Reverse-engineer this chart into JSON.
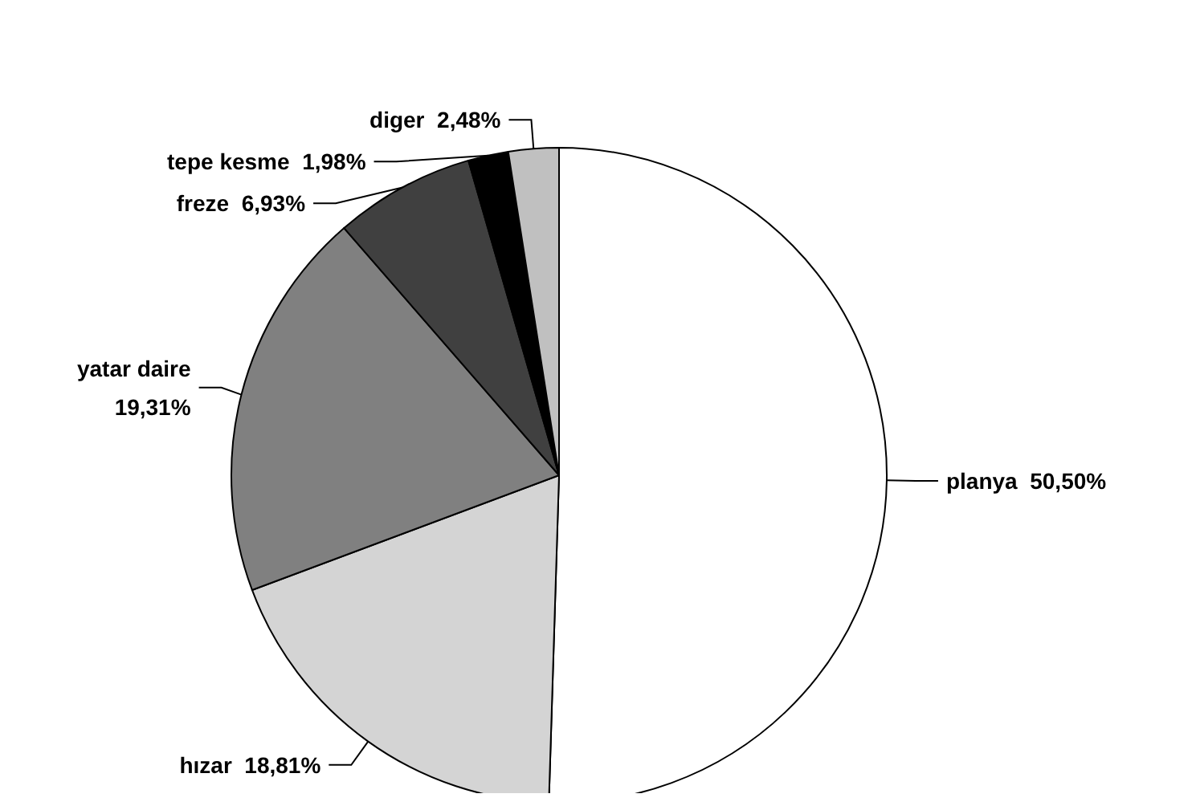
{
  "chart_data": {
    "type": "pie",
    "categories": [
      "planya",
      "hızar",
      "yatar daire",
      "freze",
      "tepe kesme",
      "diger"
    ],
    "values": [
      50.5,
      18.81,
      19.31,
      6.93,
      1.98,
      2.48
    ],
    "value_labels": [
      "50,50%",
      "18,81%",
      "19,31%",
      "6,93%",
      "1,98%",
      "2,48%"
    ],
    "colors": [
      "#ffffff",
      "#d4d4d4",
      "#808080",
      "#404040",
      "#000000",
      "#c0c0c0"
    ],
    "legend": false
  }
}
